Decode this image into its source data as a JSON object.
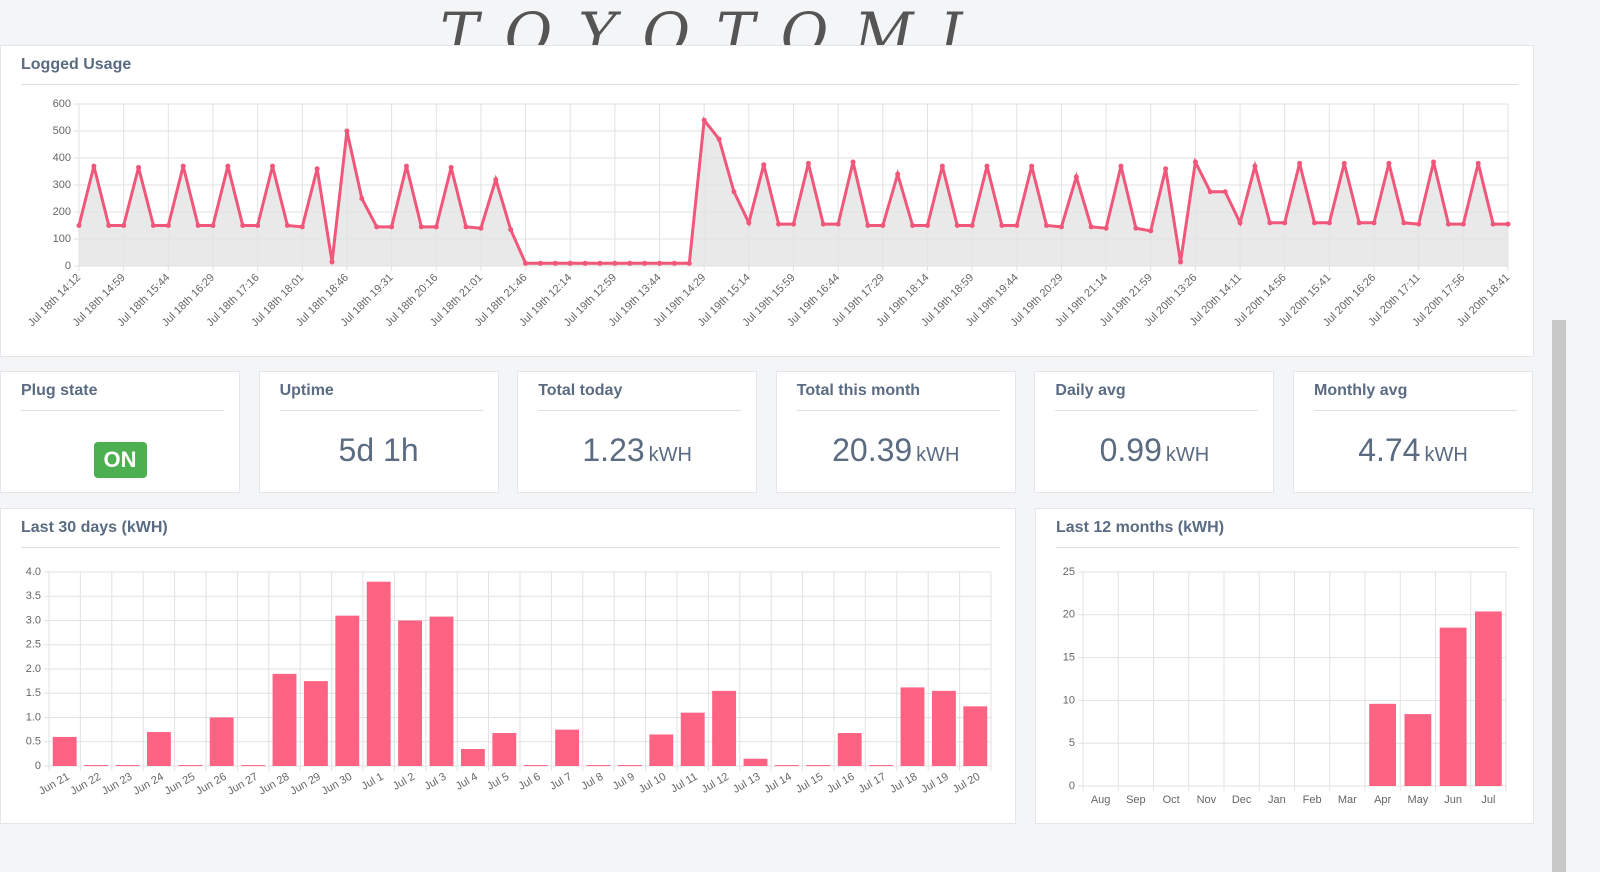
{
  "annotation": "TOYOTOMI",
  "chart_data": [
    {
      "type": "line",
      "title": "Logged Usage",
      "color": "#f0577a",
      "fill": "#e3e3e3",
      "grid": true,
      "categories": [
        "Jul 18th 14:12",
        null,
        null,
        "Jul 18th 14:59",
        null,
        null,
        "Jul 18th 15:44",
        null,
        null,
        "Jul 18th 16:29",
        null,
        null,
        "Jul 18th 17:16",
        null,
        null,
        "Jul 18th 18:01",
        null,
        null,
        "Jul 18th 18:46",
        null,
        null,
        "Jul 18th 19:31",
        null,
        null,
        "Jul 18th 20:16",
        null,
        null,
        "Jul 18th 21:01",
        null,
        null,
        "Jul 18th 21:46",
        null,
        null,
        "Jul 19th 12:14",
        null,
        null,
        "Jul 19th 12:59",
        null,
        null,
        "Jul 19th 13:44",
        null,
        null,
        "Jul 19th 14:29",
        null,
        null,
        "Jul 19th 15:14",
        null,
        null,
        "Jul 19th 15:59",
        null,
        null,
        "Jul 19th 16:44",
        null,
        null,
        "Jul 19th 17:29",
        null,
        null,
        "Jul 19th 18:14",
        null,
        null,
        "Jul 19th 18:59",
        null,
        null,
        "Jul 19th 19:44",
        null,
        null,
        "Jul 19th 20:29",
        null,
        null,
        "Jul 19th 21:14",
        null,
        null,
        "Jul 19th 21:59",
        null,
        null,
        "Jul 20th 13:26",
        null,
        null,
        "Jul 20th 14:11",
        null,
        null,
        "Jul 20th 14:56",
        null,
        null,
        "Jul 20th 15:41",
        null,
        null,
        "Jul 20th 16:26",
        null,
        null,
        "Jul 20th 17:11",
        null,
        null,
        "Jul 20th 17:56",
        null,
        null,
        "Jul 20th 18:41"
      ],
      "values": [
        150,
        370,
        150,
        150,
        365,
        150,
        150,
        370,
        150,
        150,
        370,
        150,
        150,
        370,
        150,
        145,
        360,
        15,
        500,
        250,
        145,
        145,
        370,
        145,
        145,
        365,
        145,
        140,
        320,
        135,
        10,
        10,
        10,
        10,
        10,
        10,
        10,
        10,
        10,
        10,
        10,
        10,
        540,
        470,
        275,
        160,
        375,
        155,
        155,
        380,
        155,
        155,
        385,
        150,
        150,
        340,
        150,
        150,
        370,
        150,
        150,
        370,
        150,
        150,
        370,
        150,
        145,
        330,
        145,
        140,
        370,
        140,
        130,
        360,
        15,
        385,
        275,
        275,
        160,
        370,
        160,
        160,
        380,
        160,
        160,
        380,
        160,
        160,
        380,
        160,
        155,
        385,
        155,
        155,
        380,
        155,
        155
      ],
      "ylim": [
        0,
        600
      ],
      "yticks": [
        0,
        100,
        200,
        300,
        400,
        500,
        600
      ]
    },
    {
      "type": "bar",
      "title": "Last 30 days (kWH)",
      "color": "#ff6384",
      "grid": true,
      "categories": [
        "Jun 21",
        "Jun 22",
        "Jun 23",
        "Jun 24",
        "Jun 25",
        "Jun 26",
        "Jun 27",
        "Jun 28",
        "Jun 29",
        "Jun 30",
        "Jul 1",
        "Jul 2",
        "Jul 3",
        "Jul 4",
        "Jul 5",
        "Jul 6",
        "Jul 7",
        "Jul 8",
        "Jul 9",
        "Jul 10",
        "Jul 11",
        "Jul 12",
        "Jul 13",
        "Jul 14",
        "Jul 15",
        "Jul 16",
        "Jul 17",
        "Jul 18",
        "Jul 19",
        "Jul 20"
      ],
      "values": [
        0.6,
        0.02,
        0.02,
        0.7,
        0.02,
        1.0,
        0.02,
        1.9,
        1.75,
        3.1,
        3.8,
        3.0,
        3.08,
        0.35,
        0.68,
        0.02,
        0.75,
        0.02,
        0.02,
        0.65,
        1.1,
        1.55,
        0.15,
        0.02,
        0.02,
        0.68,
        0.02,
        1.62,
        1.55,
        1.23
      ],
      "ylim": [
        0,
        4
      ],
      "yticks": [
        0,
        0.5,
        {
          "value": 1,
          "label": "1.0"
        },
        1.5,
        {
          "value": 2,
          "label": "2.0"
        },
        2.5,
        {
          "value": 3,
          "label": "3.0"
        },
        3.5,
        {
          "value": 4,
          "label": "4.0"
        }
      ]
    },
    {
      "type": "bar",
      "title": "Last 12 months (kWH)",
      "color": "#ff6384",
      "grid": true,
      "categories": [
        "Aug",
        "Sep",
        "Oct",
        "Nov",
        "Dec",
        "Jan",
        "Feb",
        "Mar",
        "Apr",
        "May",
        "Jun",
        "Jul"
      ],
      "values": [
        0,
        0,
        0,
        0,
        0,
        0,
        0,
        0,
        9.6,
        8.4,
        18.5,
        20.39
      ],
      "ylim": [
        0,
        25
      ],
      "yticks": [
        0,
        5,
        10,
        15,
        20,
        25
      ]
    }
  ],
  "cards": [
    {
      "title": "Plug state",
      "value": "ON"
    },
    {
      "title": "Uptime",
      "value": "5d 1h"
    },
    {
      "title": "Total today",
      "value": "1.23",
      "unit": "kWH"
    },
    {
      "title": "Total this month",
      "value": "20.39",
      "unit": "kWH"
    },
    {
      "title": "Daily avg",
      "value": "0.99",
      "unit": "kWH"
    },
    {
      "title": "Monthly avg",
      "value": "4.74",
      "unit": "kWH"
    }
  ]
}
